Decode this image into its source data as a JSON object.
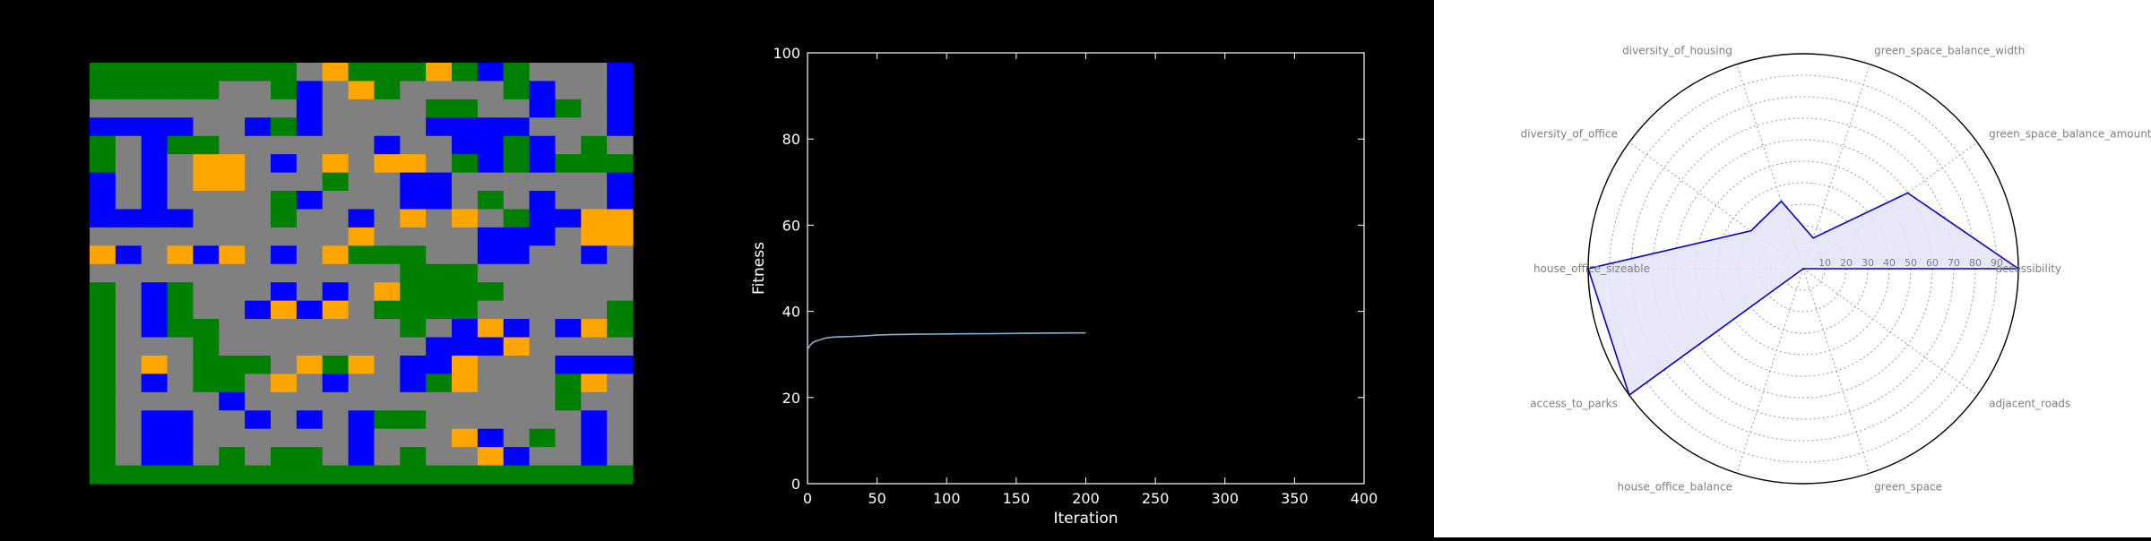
{
  "grid_map": {
    "legend": {
      "0": "#008000",
      "1": "#808080",
      "2": "#0000FF",
      "3": "#FFA500"
    },
    "rows": [
      "000000001300030201112",
      "000001102130111102112",
      "111111112111100112012",
      "222211202111122221112",
      "012001111112112202101",
      "012133121313310202000",
      "212133111011221111112",
      "212111102111221012112",
      "222211101121313102233",
      "111111111131111222133",
      "321323121300011221121",
      "111111111111000111111",
      "012011121213000011111",
      "012011232310000111110",
      "012001111111012321230",
      "011101111111122231111",
      "013100013031223111222",
      "012100131211203111031",
      "011112111111111111011",
      "012211212120011111121",
      "012211111121113210121",
      "012210100121011321121",
      "000000000000000000000"
    ]
  },
  "chart_data": [
    {
      "type": "line",
      "xlabel": "Iteration",
      "ylabel": "Fitness",
      "xlim": [
        0,
        400
      ],
      "ylim": [
        0,
        100
      ],
      "xticks": [
        "0",
        "50",
        "100",
        "150",
        "200",
        "250",
        "300",
        "350",
        "400"
      ],
      "yticks": [
        "0",
        "20",
        "40",
        "60",
        "80",
        "100"
      ],
      "grid": false,
      "colors": {
        "line": "#80B1D3",
        "axes": "#FFFFFF",
        "background": "#000000"
      },
      "series": [
        {
          "x": [
            0,
            1,
            2,
            4,
            6,
            8,
            10,
            13,
            16,
            20,
            25,
            30,
            40,
            50,
            60,
            70,
            80,
            90,
            100,
            110,
            120,
            130,
            140,
            150,
            160,
            170,
            180,
            190,
            200
          ],
          "y": [
            31.0,
            31.7,
            32.2,
            32.8,
            33.1,
            33.3,
            33.5,
            33.8,
            33.95,
            34.05,
            34.1,
            34.15,
            34.3,
            34.5,
            34.6,
            34.65,
            34.7,
            34.72,
            34.75,
            34.78,
            34.8,
            34.82,
            34.85,
            34.9,
            34.92,
            34.95,
            34.97,
            35.0,
            35.0
          ]
        }
      ]
    },
    {
      "type": "radar",
      "categories": [
        "accessibility",
        "green_space_balance_amount",
        "green_space_balance_width",
        "diversity_of_housing",
        "diversity_of_office",
        "house_office_sizeable",
        "access_to_parks",
        "house_office_balance",
        "green_space",
        "adjacent_roads"
      ],
      "rlim": [
        0,
        100
      ],
      "rticks": [
        "10",
        "20",
        "30",
        "40",
        "50",
        "60",
        "70",
        "80",
        "90"
      ],
      "grid": true,
      "colors": {
        "line": "#0000CC",
        "fill": "#E6E6FA",
        "label": "#808080"
      },
      "series": [
        {
          "values": [
            100,
            60,
            15,
            33,
            30,
            100,
            100,
            0,
            0,
            0
          ]
        }
      ]
    }
  ]
}
